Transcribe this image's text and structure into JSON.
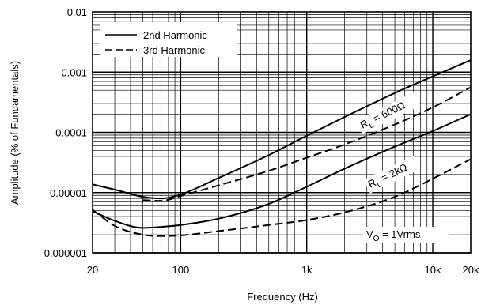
{
  "chart_data": {
    "type": "line",
    "xlabel": "Frequency (Hz)",
    "ylabel": "Amplitude (% of Fundamentals)",
    "x_scale": "log",
    "y_scale": "log",
    "xlim": [
      20,
      20000
    ],
    "ylim": [
      1e-06,
      0.01
    ],
    "grid": true,
    "x_ticks": [
      {
        "value": 20,
        "label": "20"
      },
      {
        "value": 100,
        "label": "100"
      },
      {
        "value": 1000,
        "label": "1k"
      },
      {
        "value": 10000,
        "label": "10k"
      },
      {
        "value": 20000,
        "label": "20k"
      }
    ],
    "y_ticks": [
      {
        "value": 0.01,
        "label": "0.01"
      },
      {
        "value": 0.001,
        "label": "0.001"
      },
      {
        "value": 0.0001,
        "label": "0.0001"
      },
      {
        "value": 1e-05,
        "label": "0.00001"
      },
      {
        "value": 1e-06,
        "label": "0.000001"
      }
    ],
    "legend": {
      "position": "top-left",
      "entries": [
        {
          "label": "2nd Harmonic",
          "style": "solid"
        },
        {
          "label": "3rd Harmonic",
          "style": "dashed"
        }
      ]
    },
    "annotations": {
      "rl600": {
        "prefix": "R",
        "sub": "L",
        "suffix": " = 600Ω"
      },
      "rl2k": {
        "prefix": "R",
        "sub": "L",
        "suffix": " = 2kΩ"
      },
      "vo": {
        "prefix": "V",
        "sub": "O",
        "suffix": " = 1Vrms"
      }
    },
    "series": [
      {
        "load": "600Ω",
        "harmonic": "2nd",
        "style": "solid",
        "points": [
          [
            20,
            1.37e-05
          ],
          [
            30,
            1.12e-05
          ],
          [
            50,
            8.5e-06
          ],
          [
            70,
            8e-06
          ],
          [
            100,
            9.3e-06
          ],
          [
            200,
            1.75e-05
          ],
          [
            500,
            4.2e-05
          ],
          [
            1000,
            8.8e-05
          ],
          [
            2000,
            0.00018
          ],
          [
            5000,
            0.00045
          ],
          [
            10000,
            0.00085
          ],
          [
            20000,
            0.00158
          ]
        ]
      },
      {
        "load": "600Ω",
        "harmonic": "3rd",
        "style": "dashed",
        "points": [
          [
            50,
            7.5e-06
          ],
          [
            70,
            7.3e-06
          ],
          [
            100,
            8.8e-06
          ],
          [
            200,
            1.32e-05
          ],
          [
            500,
            2.3e-05
          ],
          [
            1000,
            3.8e-05
          ],
          [
            2000,
            6.3e-05
          ],
          [
            5000,
            0.000135
          ],
          [
            10000,
            0.00026
          ],
          [
            20000,
            0.00056
          ]
        ]
      },
      {
        "load": "2kΩ",
        "harmonic": "2nd",
        "style": "solid",
        "points": [
          [
            20,
            4.9e-06
          ],
          [
            30,
            3.4e-06
          ],
          [
            50,
            2.6e-06
          ],
          [
            70,
            2.7e-06
          ],
          [
            100,
            2.9e-06
          ],
          [
            200,
            3.7e-06
          ],
          [
            500,
            6.5e-06
          ],
          [
            1000,
            1.25e-05
          ],
          [
            2000,
            2.5e-05
          ],
          [
            5000,
            5.8e-05
          ],
          [
            10000,
            0.000105
          ],
          [
            20000,
            0.0002
          ]
        ]
      },
      {
        "load": "2kΩ",
        "harmonic": "3rd",
        "style": "dashed",
        "points": [
          [
            20,
            5.2e-06
          ],
          [
            30,
            2.8e-06
          ],
          [
            50,
            2e-06
          ],
          [
            70,
            1.9e-06
          ],
          [
            100,
            1.95e-06
          ],
          [
            200,
            2.3e-06
          ],
          [
            500,
            2.9e-06
          ],
          [
            1000,
            3.5e-06
          ],
          [
            2000,
            4.7e-06
          ],
          [
            5000,
            8.5e-06
          ],
          [
            10000,
            1.7e-05
          ],
          [
            20000,
            3.6e-05
          ]
        ]
      }
    ]
  }
}
